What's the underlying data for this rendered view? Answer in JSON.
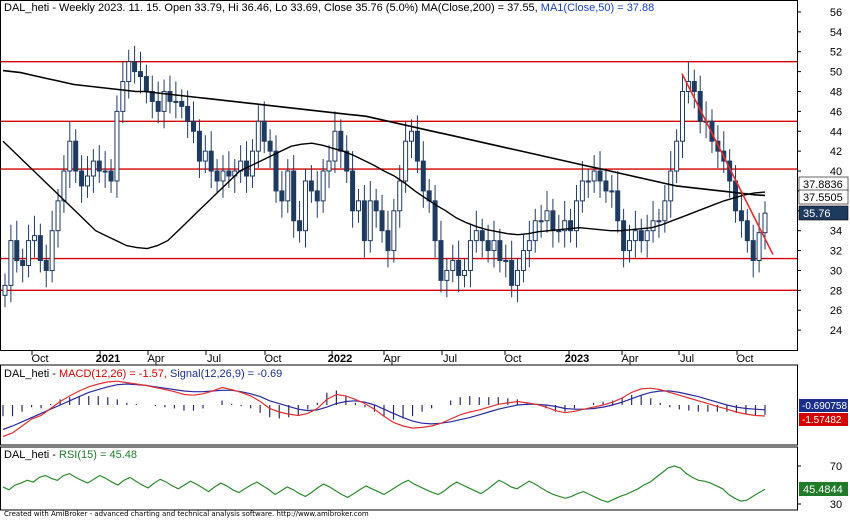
{
  "colors": {
    "candle": "#1f3a5f",
    "ma200": "#000000",
    "ma50": "#000000",
    "hline": "#d40000",
    "trend": "#e03030",
    "macd": "#e03030",
    "signal": "#2a2aa0",
    "hist": "#2a2a60",
    "rsi": "#2f8a2f",
    "price_tag": "#1f3a5f",
    "macd_tag": "#1a2e8a",
    "signal_tag": "#d40000",
    "rsi_tag": "#1f7a2a"
  },
  "header": {
    "ticker": "DAL_heti",
    "info": " - Weekly 2023. 11. 15. Open 33.79, Hi 36.46, Lo 33.69, Close 35.76 (5.0%) MA(Close,200) = 37.55, ",
    "ma50_text": "MA1(Close,50) = 37.88"
  },
  "macd_legend": {
    "ticker": "DAL_heti - ",
    "macd": "MACD(12,26) = -1.57, ",
    "signal": "Signal(12,26,9) = -0.69"
  },
  "rsi_legend": {
    "ticker": "DAL_heti - ",
    "rsi": "RSI(15) = 45.48"
  },
  "footer": "Created with AmiBroker - advanced charting and technical analysis software. http://www.amibroker.com",
  "chart_data": {
    "type": "candlestick",
    "title": "DAL_heti - Weekly",
    "x_labels": [
      "Oct",
      "2021",
      "Apr",
      "Jul",
      "Oct",
      "2022",
      "Apr",
      "Jul",
      "Oct",
      "2023",
      "Apr",
      "Jul",
      "Oct"
    ],
    "y_ticks": [
      24,
      26,
      28,
      30,
      32,
      34,
      36,
      38,
      40,
      42,
      44,
      46,
      48,
      50,
      52,
      54,
      56
    ],
    "ylim": [
      22,
      57
    ],
    "horizontal_lines": [
      51,
      45,
      40.2,
      31.2,
      28
    ],
    "trendline": {
      "from": [
        49.8
      ],
      "to": [
        31.6
      ]
    },
    "price_tags": [
      {
        "label": "37.8836",
        "value": 37.88
      },
      {
        "label": "37.5505",
        "value": 37.55
      },
      {
        "label": "35.76",
        "value": 35.76
      }
    ],
    "close": [
      28.5,
      33,
      31,
      30.5,
      33,
      33.5,
      31,
      30,
      34,
      37,
      40,
      43,
      40,
      38.5,
      39.5,
      41,
      40,
      40,
      39,
      46,
      49,
      51,
      50,
      49.5,
      48,
      47,
      46,
      48,
      47,
      47,
      46.5,
      45,
      44,
      41,
      42,
      40,
      39,
      40,
      39.5,
      40,
      41,
      39.5,
      42,
      45,
      43,
      42,
      38,
      37,
      40,
      35,
      34,
      39,
      38,
      37,
      40,
      41,
      44,
      42,
      40,
      36,
      37,
      33,
      37,
      36,
      34,
      32,
      36,
      39,
      43,
      44,
      41,
      38,
      37,
      33,
      29,
      30,
      31,
      29.5,
      30,
      33,
      34,
      33,
      32,
      33,
      31,
      31,
      28.5,
      30,
      32,
      33,
      35,
      35,
      36,
      34,
      34,
      35,
      34,
      37,
      39,
      39,
      40,
      39,
      38,
      38,
      35,
      32,
      33,
      34,
      33,
      34,
      35,
      35,
      37,
      40,
      43,
      48,
      49,
      48,
      45,
      45,
      43,
      42,
      41,
      39,
      36,
      35,
      33,
      31,
      33.8,
      35.76
    ],
    "ma200": [
      50.1,
      50,
      49.9,
      49.7,
      49.5,
      49.3,
      49.1,
      48.9,
      48.7,
      48.6,
      48.5,
      48.4,
      48.3,
      48.2,
      48.1,
      48,
      48,
      47.9,
      47.8,
      47.7,
      47.6,
      47.5,
      47.4,
      47.3,
      47.2,
      47.1,
      47,
      46.9,
      46.8,
      46.7,
      46.6,
      46.5,
      46.4,
      46.3,
      46.2,
      46.1,
      46,
      45.9,
      45.8,
      45.7,
      45.6,
      45.5,
      45.3,
      45.1,
      44.9,
      44.7,
      44.5,
      44.3,
      44.1,
      43.9,
      43.7,
      43.5,
      43.3,
      43.1,
      42.9,
      42.7,
      42.5,
      42.3,
      42.1,
      41.9,
      41.7,
      41.5,
      41.3,
      41.1,
      40.9,
      40.7,
      40.5,
      40.3,
      40.1,
      39.9,
      39.7,
      39.5,
      39.3,
      39.1,
      38.9,
      38.7,
      38.5,
      38.4,
      38.3,
      38.2,
      38.1,
      38,
      37.9,
      37.8,
      37.7,
      37.6,
      37.55
    ],
    "ma50": [
      43,
      42,
      41,
      40,
      39,
      38,
      37,
      36,
      35,
      34,
      33.5,
      33,
      32.5,
      32.3,
      32.2,
      32.5,
      33,
      34,
      35,
      36,
      37,
      38,
      39,
      40,
      40.5,
      41,
      41.5,
      42,
      42.5,
      42.7,
      42.8,
      42.6,
      42.3,
      42,
      41.6,
      41.1,
      40.6,
      40,
      39.5,
      38.8,
      38,
      37.3,
      36.6,
      36,
      35.3,
      34.8,
      34.4,
      34.1,
      33.9,
      33.7,
      33.6,
      33.7,
      33.9,
      34,
      34.1,
      34.2,
      34.3,
      34.2,
      34.1,
      34,
      34,
      34.1,
      34.2,
      34.3,
      34.6,
      35,
      35.4,
      35.8,
      36.2,
      36.6,
      37,
      37.3,
      37.6,
      37.8,
      37.88
    ],
    "macd_legend_values": {
      "macd": -1.57,
      "signal": -0.69
    },
    "macd_tags": [
      {
        "label": "-0.690758",
        "value": -0.69
      },
      {
        "label": "-1.57482",
        "value": -1.57
      }
    ],
    "macd_line": [
      -4.5,
      -4,
      -3,
      -2,
      -1.5,
      -0.5,
      0.5,
      1.3,
      2,
      2.6,
      3,
      3.3,
      3.4,
      3.2,
      3,
      2.8,
      2.5,
      2.2,
      1.9,
      1.5,
      1.4,
      1.6,
      2,
      2.5,
      2.2,
      1.8,
      1.3,
      0.5,
      -0.5,
      -1,
      -1.3,
      -1.5,
      -1.2,
      -0.5,
      0.8,
      1.5,
      1.3,
      0.8,
      0.2,
      -0.6,
      -1.6,
      -2.5,
      -3,
      -3.3,
      -3.2,
      -3,
      -2.6,
      -2,
      -1.4,
      -1,
      -0.7,
      -0.3,
      0.1,
      0.3,
      0.5,
      0.3,
      0.1,
      -0.3,
      -0.8,
      -1.1,
      -0.9,
      -0.6,
      -0.3,
      0,
      0.4,
      1,
      1.8,
      2.3,
      2.4,
      2.2,
      1.8,
      1.4,
      1,
      0.6,
      0.2,
      -0.2,
      -0.6,
      -1,
      -1.3,
      -1.5,
      -1.57
    ],
    "signal_line": [
      -3.5,
      -3,
      -2.4,
      -1.8,
      -1.2,
      -0.6,
      0,
      0.6,
      1.2,
      1.8,
      2.2,
      2.6,
      2.9,
      3,
      2.9,
      2.8,
      2.6,
      2.4,
      2.2,
      2,
      1.9,
      1.9,
      2,
      2.1,
      2.1,
      1.9,
      1.6,
      1.2,
      0.6,
      0.2,
      -0.2,
      -0.6,
      -0.8,
      -0.7,
      -0.3,
      0.2,
      0.5,
      0.6,
      0.4,
      0,
      -0.6,
      -1.2,
      -1.8,
      -2.3,
      -2.6,
      -2.7,
      -2.6,
      -2.4,
      -2.1,
      -1.8,
      -1.4,
      -1,
      -0.6,
      -0.3,
      0,
      0.1,
      0.1,
      0,
      -0.2,
      -0.5,
      -0.6,
      -0.6,
      -0.5,
      -0.3,
      0,
      0.4,
      0.9,
      1.4,
      1.8,
      2,
      2,
      1.8,
      1.5,
      1.2,
      0.8,
      0.4,
      0,
      -0.3,
      -0.5,
      -0.6,
      -0.69
    ],
    "rsi_legend_value": 45.48,
    "rsi_ticks": [
      30,
      70
    ],
    "rsi_tag": {
      "label": "45.4844",
      "value": 45.48
    },
    "rsi": [
      48,
      45,
      50,
      52,
      55,
      53,
      58,
      60,
      57,
      55,
      60,
      62,
      58,
      55,
      52,
      56,
      60,
      57,
      53,
      50,
      55,
      58,
      54,
      50,
      47,
      52,
      56,
      53,
      49,
      46,
      50,
      54,
      51,
      47,
      43,
      48,
      52,
      49,
      45,
      42,
      46,
      50,
      53,
      49,
      45,
      40,
      44,
      48,
      45,
      41,
      38,
      42,
      47,
      51,
      48,
      44,
      40,
      37,
      41,
      45,
      49,
      46,
      43,
      40,
      44,
      48,
      52,
      55,
      51,
      48,
      45,
      42,
      40,
      44,
      49,
      53,
      50,
      47,
      44,
      41,
      45,
      50,
      55,
      52,
      48,
      46,
      50,
      54,
      51,
      47,
      43,
      40,
      38,
      36,
      38,
      41,
      43,
      40,
      37,
      34,
      32,
      35,
      38,
      40,
      43,
      46,
      50,
      53,
      58,
      63,
      68,
      70,
      68,
      62,
      58,
      55,
      54,
      52,
      49,
      46,
      40,
      36,
      33,
      34,
      38,
      42,
      45.48
    ]
  }
}
